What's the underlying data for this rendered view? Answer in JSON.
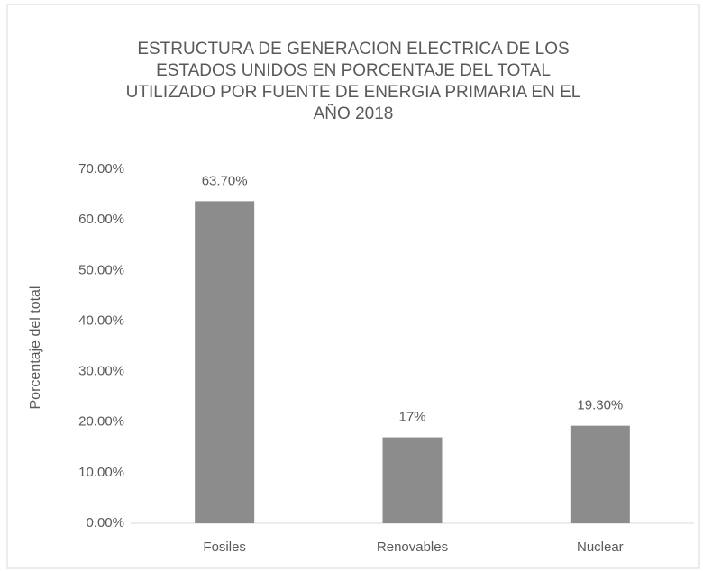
{
  "chart_data": {
    "type": "bar",
    "title": [
      "ESTRUCTURA DE GENERACION ELECTRICA DE LOS",
      "ESTADOS  UNIDOS EN PORCENTAJE DEL TOTAL",
      "UTILIZADO POR FUENTE DE ENERGIA PRIMARIA  EN EL",
      "AÑO 2018"
    ],
    "y_label": "Porcentaje del total",
    "categories": [
      "Fosiles",
      "Renovables",
      "Nuclear"
    ],
    "values": [
      63.7,
      17,
      19.3
    ],
    "value_labels": [
      "63.70%",
      "17%",
      "19.30%"
    ],
    "color": "#8c8c8c",
    "ylim": [
      0,
      70
    ],
    "yticks": [
      {
        "value": 0,
        "label": "0.00%"
      },
      {
        "value": 10,
        "label": "10.00%"
      },
      {
        "value": 20,
        "label": "20.00%"
      },
      {
        "value": 30,
        "label": "30.00%"
      },
      {
        "value": 40,
        "label": "40.00%"
      },
      {
        "value": 50,
        "label": "50.00%"
      },
      {
        "value": 60,
        "label": "60.00%"
      },
      {
        "value": 70,
        "label": "70.00%"
      }
    ],
    "grid": false
  }
}
